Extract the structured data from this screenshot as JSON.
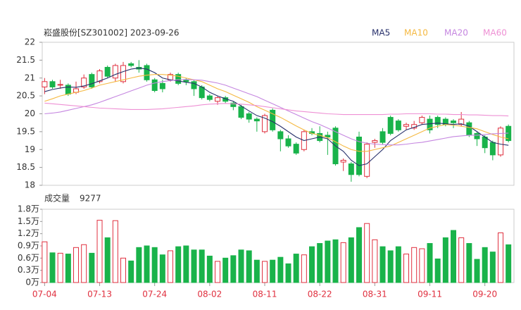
{
  "chart_data": [
    {
      "type": "candlestick",
      "title": "崧盛股份[SZ301002] 2023-09-26",
      "categories": [
        "07-04",
        null,
        null,
        null,
        null,
        null,
        null,
        "07-13",
        null,
        null,
        null,
        null,
        null,
        null,
        "07-24",
        null,
        null,
        null,
        null,
        null,
        null,
        "08-02",
        null,
        null,
        null,
        null,
        null,
        null,
        "08-11",
        null,
        null,
        null,
        null,
        null,
        null,
        "08-22",
        null,
        null,
        null,
        null,
        null,
        null,
        "08-31",
        null,
        null,
        null,
        null,
        null,
        null,
        "09-11",
        null,
        null,
        null,
        null,
        null,
        null,
        "09-20",
        null,
        null,
        null
      ],
      "open": [
        20.75,
        20.9,
        20.8,
        20.8,
        20.6,
        20.75,
        21.1,
        20.9,
        21.3,
        21.0,
        20.9,
        21.4,
        21.3,
        21.35,
        20.95,
        20.85,
        20.95,
        21.1,
        20.95,
        20.9,
        20.75,
        20.5,
        20.35,
        20.45,
        20.3,
        20.2,
        20.0,
        19.85,
        19.5,
        20.1,
        19.5,
        19.3,
        19.15,
        19.0,
        19.5,
        19.45,
        19.4,
        19.6,
        18.65,
        18.6,
        19.35,
        18.25,
        19.2,
        19.5,
        19.9,
        19.8,
        19.65,
        19.6,
        19.75,
        19.85,
        19.9,
        19.85,
        19.8,
        19.7,
        19.75,
        19.45,
        19.35,
        19.2,
        18.85,
        19.65
      ],
      "high": [
        21.0,
        20.95,
        20.95,
        20.85,
        20.9,
        21.1,
        21.15,
        21.25,
        21.35,
        21.4,
        21.45,
        21.45,
        21.5,
        21.4,
        21.0,
        20.95,
        21.15,
        21.15,
        21.0,
        20.95,
        20.8,
        20.55,
        20.5,
        20.5,
        20.35,
        20.25,
        20.05,
        19.9,
        20.0,
        20.15,
        19.55,
        19.4,
        19.2,
        19.55,
        19.6,
        19.65,
        19.5,
        19.65,
        18.75,
        18.65,
        19.5,
        19.2,
        19.3,
        19.6,
        19.95,
        19.85,
        19.75,
        19.8,
        19.95,
        19.95,
        19.95,
        19.9,
        19.85,
        20.05,
        19.8,
        19.5,
        19.4,
        19.25,
        19.65,
        19.7
      ],
      "low": [
        20.55,
        20.7,
        20.7,
        20.5,
        20.55,
        20.7,
        20.7,
        20.85,
        21.0,
        20.9,
        20.85,
        21.3,
        21.15,
        20.9,
        20.6,
        20.6,
        20.9,
        20.8,
        20.8,
        20.5,
        20.4,
        20.35,
        20.25,
        20.3,
        20.1,
        19.85,
        19.75,
        19.5,
        19.45,
        19.5,
        18.95,
        19.05,
        18.85,
        18.95,
        19.4,
        19.2,
        18.85,
        18.55,
        18.4,
        18.1,
        18.25,
        18.2,
        19.05,
        19.15,
        19.4,
        19.5,
        19.55,
        19.55,
        19.7,
        19.45,
        19.6,
        19.65,
        19.6,
        19.65,
        19.35,
        19.1,
        18.9,
        18.7,
        18.8,
        19.2
      ],
      "close": [
        20.9,
        20.75,
        20.82,
        20.55,
        20.7,
        21.0,
        20.75,
        21.2,
        21.05,
        21.35,
        21.35,
        21.35,
        21.25,
        20.95,
        20.65,
        20.7,
        21.1,
        20.85,
        20.9,
        20.7,
        20.45,
        20.4,
        20.45,
        20.35,
        20.2,
        19.9,
        19.85,
        19.8,
        19.95,
        19.55,
        19.3,
        19.1,
        18.9,
        19.5,
        19.45,
        19.25,
        19.35,
        18.6,
        18.7,
        18.3,
        18.3,
        19.15,
        19.25,
        19.2,
        19.45,
        19.55,
        19.7,
        19.7,
        19.9,
        19.55,
        19.7,
        19.7,
        19.75,
        19.85,
        19.4,
        19.3,
        19.05,
        18.85,
        19.6,
        19.25
      ],
      "up_color": "#e0303f",
      "down_color": "#19b34a",
      "series": [
        {
          "name": "MA5",
          "color": "#27306b",
          "values": [
            20.62,
            20.68,
            20.72,
            20.75,
            20.74,
            20.78,
            20.84,
            20.92,
            21.0,
            21.1,
            21.18,
            21.25,
            21.28,
            21.25,
            21.15,
            21.0,
            20.95,
            20.92,
            20.88,
            20.85,
            20.75,
            20.6,
            20.5,
            20.42,
            20.35,
            20.22,
            20.08,
            19.95,
            19.88,
            19.78,
            19.65,
            19.5,
            19.35,
            19.25,
            19.3,
            19.35,
            19.3,
            19.1,
            18.95,
            18.7,
            18.55,
            18.6,
            18.8,
            19.0,
            19.25,
            19.4,
            19.55,
            19.62,
            19.7,
            19.72,
            19.74,
            19.72,
            19.7,
            19.72,
            19.65,
            19.5,
            19.35,
            19.2,
            19.15,
            19.12
          ]
        },
        {
          "name": "MA10",
          "color": "#f5b942",
          "values": [
            20.35,
            20.42,
            20.5,
            20.55,
            20.6,
            20.65,
            20.72,
            20.8,
            20.85,
            20.9,
            20.95,
            21.0,
            21.05,
            21.08,
            21.1,
            21.1,
            21.08,
            21.05,
            21.0,
            20.95,
            20.9,
            20.8,
            20.7,
            20.62,
            20.52,
            20.42,
            20.32,
            20.2,
            20.1,
            20.0,
            19.9,
            19.78,
            19.66,
            19.55,
            19.45,
            19.4,
            19.33,
            19.22,
            19.1,
            19.0,
            18.95,
            18.95,
            19.0,
            19.05,
            19.1,
            19.2,
            19.3,
            19.4,
            19.5,
            19.6,
            19.65,
            19.7,
            19.68,
            19.65,
            19.62,
            19.58,
            19.5,
            19.42,
            19.35,
            19.3
          ]
        },
        {
          "name": "MA20",
          "color": "#c586e0",
          "values": [
            20.0,
            20.02,
            20.05,
            20.1,
            20.15,
            20.2,
            20.25,
            20.32,
            20.4,
            20.48,
            20.56,
            20.64,
            20.72,
            20.8,
            20.86,
            20.9,
            20.93,
            20.95,
            20.96,
            20.95,
            20.94,
            20.9,
            20.86,
            20.8,
            20.72,
            20.64,
            20.56,
            20.48,
            20.38,
            20.28,
            20.18,
            20.08,
            19.98,
            19.88,
            19.78,
            19.7,
            19.6,
            19.5,
            19.4,
            19.3,
            19.22,
            19.18,
            19.15,
            19.14,
            19.13,
            19.13,
            19.15,
            19.18,
            19.2,
            19.24,
            19.28,
            19.32,
            19.36,
            19.38,
            19.4,
            19.4,
            19.42,
            19.44,
            19.45,
            19.46
          ]
        },
        {
          "name": "MA60",
          "color": "#ee90d4",
          "values": [
            20.3,
            20.28,
            20.26,
            20.24,
            20.22,
            20.2,
            20.18,
            20.16,
            20.15,
            20.14,
            20.13,
            20.12,
            20.12,
            20.12,
            20.13,
            20.14,
            20.16,
            20.18,
            20.2,
            20.22,
            20.25,
            20.27,
            20.28,
            20.29,
            20.28,
            20.27,
            20.25,
            20.23,
            20.2,
            20.17,
            20.14,
            20.11,
            20.08,
            20.06,
            20.04,
            20.02,
            20.0,
            19.99,
            19.98,
            19.98,
            19.98,
            19.98,
            19.98,
            19.98,
            19.99,
            19.99,
            20.0,
            20.0,
            20.0,
            20.0,
            19.99,
            19.99,
            19.98,
            19.98,
            19.97,
            19.97,
            19.96,
            19.95,
            19.95,
            19.94
          ]
        }
      ],
      "ylim": [
        18,
        22
      ],
      "yticks": [
        22,
        21.5,
        21,
        20.5,
        20,
        19.5,
        19,
        18.5,
        18
      ]
    },
    {
      "type": "bar",
      "title": "成交量",
      "last_value": 9277,
      "values": [
        1.0,
        0.73,
        0.72,
        0.7,
        0.86,
        0.93,
        0.72,
        1.53,
        1.1,
        1.52,
        0.6,
        0.53,
        0.86,
        0.9,
        0.86,
        0.68,
        0.78,
        0.88,
        0.9,
        0.8,
        0.8,
        0.65,
        0.52,
        0.6,
        0.66,
        0.8,
        0.78,
        0.55,
        0.52,
        0.55,
        0.62,
        0.46,
        0.7,
        0.68,
        0.88,
        0.96,
        1.02,
        1.05,
        0.98,
        1.1,
        1.35,
        1.45,
        1.05,
        0.88,
        0.78,
        0.88,
        0.7,
        0.86,
        0.83,
        0.96,
        0.58,
        1.1,
        1.28,
        1.1,
        0.96,
        0.57,
        0.86,
        0.75,
        1.22,
        0.9277
      ],
      "ylim": [
        0,
        1.8
      ],
      "yticks": [
        {
          "value": 1.8,
          "label": "1.8万"
        },
        {
          "value": 1.5,
          "label": "1.5万"
        },
        {
          "value": 1.2,
          "label": "1.2万"
        },
        {
          "value": 0.9,
          "label": "0.9万"
        },
        {
          "value": 0.6,
          "label": "0.6万"
        },
        {
          "value": 0.3,
          "label": "0.3万"
        },
        {
          "value": 0,
          "label": "0万"
        }
      ]
    }
  ]
}
